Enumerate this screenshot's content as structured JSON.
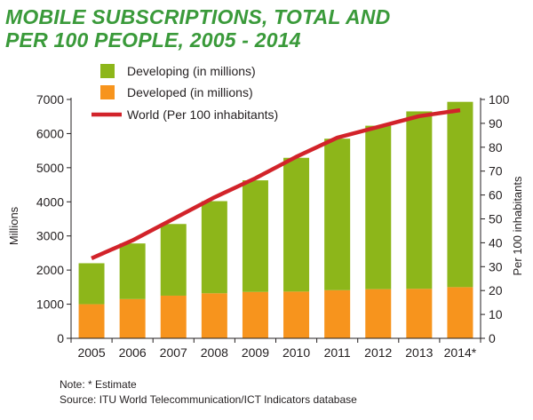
{
  "title_line1": "MOBILE SUBSCRIPTIONS, TOTAL AND",
  "title_line2": "PER 100 PEOPLE, 2005 - 2014",
  "colors": {
    "title": "#3a9a3a",
    "developing": "#8db61a",
    "developed": "#f7941d",
    "world": "#d2232a",
    "text": "#231f20"
  },
  "chart_data": {
    "type": "bar",
    "stacked": true,
    "categories": [
      "2005",
      "2006",
      "2007",
      "2008",
      "2009",
      "2010",
      "2011",
      "2012",
      "2013",
      "2014*"
    ],
    "series": [
      {
        "name": "Developed (in millions)",
        "axis": "left",
        "values": [
          1000,
          1150,
          1250,
          1320,
          1360,
          1370,
          1410,
          1440,
          1450,
          1500
        ]
      },
      {
        "name": "Developing (in millions)",
        "axis": "left",
        "values": [
          1200,
          1630,
          2100,
          2700,
          3270,
          3920,
          4440,
          4790,
          5200,
          5430
        ]
      },
      {
        "name": "World (Per 100 inhabitants)",
        "type": "line",
        "axis": "right",
        "values": [
          33.5,
          41,
          50,
          59,
          67,
          76,
          84,
          88.5,
          93,
          95.5
        ]
      }
    ],
    "legend": [
      "Developing (in millions)",
      "Developed (in millions)",
      "World (Per 100 inhabitants)"
    ],
    "legend_position": "top-left",
    "ylabel": "Millions",
    "ylabel_right": "Per 100 inhabitants",
    "ylim": [
      0,
      7000
    ],
    "yticks": [
      0,
      1000,
      2000,
      3000,
      4000,
      5000,
      6000,
      7000
    ],
    "ylim_right": [
      0,
      100
    ],
    "yticks_right": [
      0,
      10,
      20,
      30,
      40,
      50,
      60,
      70,
      80,
      90,
      100
    ],
    "grid": false
  },
  "notes": {
    "note": "Note: * Estimate",
    "source": "Source:  ITU World Telecommunication/ICT Indicators database"
  }
}
